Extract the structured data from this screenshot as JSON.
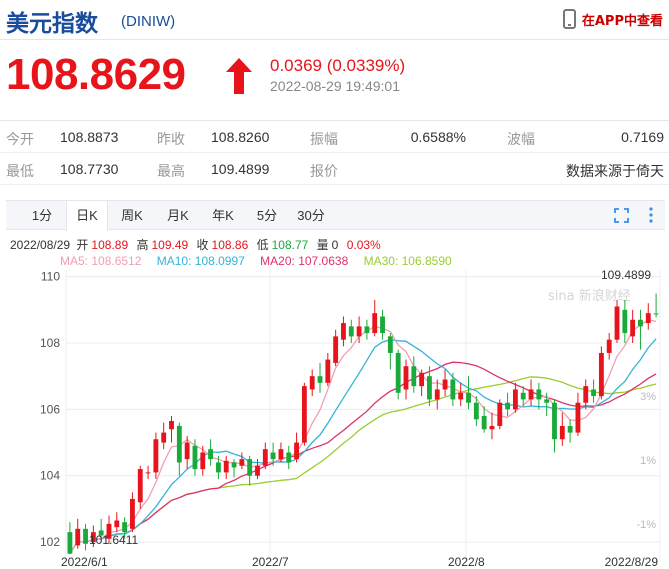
{
  "header": {
    "title": "美元指数",
    "code": "(DINIW)",
    "app_link": "在APP中查看"
  },
  "quote": {
    "price": "108.8629",
    "change": "0.0369 (0.0339%)",
    "time": "2022-08-29 19:49:01"
  },
  "stats": {
    "row1": [
      {
        "label": "今开",
        "value": "108.8873"
      },
      {
        "label": "昨收",
        "value": "108.8260"
      },
      {
        "label": "振幅",
        "value": "0.6588%"
      },
      {
        "label": "波幅",
        "value": "0.7169"
      }
    ],
    "row2": [
      {
        "label": "最低",
        "value": "108.7730"
      },
      {
        "label": "最高",
        "value": "109.4899"
      },
      {
        "label": "报价",
        "value": ""
      },
      {
        "label": "",
        "value": "数据来源于倚天"
      }
    ]
  },
  "tabs": [
    {
      "label": "1分",
      "active": false
    },
    {
      "label": "日K",
      "active": true
    },
    {
      "label": "周K",
      "active": false
    },
    {
      "label": "月K",
      "active": false
    },
    {
      "label": "年K",
      "active": false
    },
    {
      "label": "5分",
      "active": false
    },
    {
      "label": "30分",
      "active": false
    }
  ],
  "kline_info": {
    "date": "2022/08/29",
    "open_label": "开",
    "open": "108.89",
    "high_label": "高",
    "high": "109.49",
    "close_label": "收",
    "close": "108.86",
    "low_label": "低",
    "low": "108.77",
    "vol_label": "量",
    "vol": "0",
    "pct": "0.03%"
  },
  "ma": [
    {
      "label": "MA5: 108.6512",
      "color": "#f0a0b0"
    },
    {
      "label": "MA10: 108.0997",
      "color": "#35b4d6"
    },
    {
      "label": "MA20: 107.0638",
      "color": "#e0306c"
    },
    {
      "label": "MA30: 106.8590",
      "color": "#9acd32"
    }
  ],
  "colors": {
    "up": "#e8141b",
    "down": "#1aaa3a",
    "brand": "#1a4c9c",
    "grid": "#e8ecf2"
  },
  "icons": [
    "phone-icon",
    "up-arrow-icon",
    "fullscreen-icon",
    "more-vertical-icon"
  ],
  "chart_data": {
    "type": "candlestick",
    "y_ticks": [
      "110",
      "108",
      "106",
      "104",
      "102"
    ],
    "pct_ticks": [
      "3%",
      "1%",
      "-1%"
    ],
    "x_ticks": [
      "2022/6/1",
      "2022/7",
      "2022/8",
      "2022/8/29"
    ],
    "ylim": [
      101.4,
      110.2
    ],
    "max_label": "109.4899",
    "min_label": "101.6411",
    "watermark": "sina 新浪财经",
    "candles": [
      {
        "o": 102.3,
        "c": 101.65,
        "h": 102.6,
        "l": 101.64
      },
      {
        "o": 101.9,
        "c": 102.4,
        "h": 102.7,
        "l": 101.8
      },
      {
        "o": 102.4,
        "c": 101.95,
        "h": 102.55,
        "l": 101.75
      },
      {
        "o": 102.0,
        "c": 102.3,
        "h": 102.5,
        "l": 101.85
      },
      {
        "o": 102.35,
        "c": 102.2,
        "h": 102.7,
        "l": 102.05
      },
      {
        "o": 102.1,
        "c": 102.55,
        "h": 102.8,
        "l": 101.95
      },
      {
        "o": 102.45,
        "c": 102.65,
        "h": 102.9,
        "l": 102.3
      },
      {
        "o": 102.6,
        "c": 102.3,
        "h": 102.75,
        "l": 102.1
      },
      {
        "o": 102.4,
        "c": 103.3,
        "h": 103.5,
        "l": 102.3
      },
      {
        "o": 103.2,
        "c": 104.2,
        "h": 104.3,
        "l": 103.0
      },
      {
        "o": 104.1,
        "c": 104.1,
        "h": 104.3,
        "l": 103.9
      },
      {
        "o": 104.1,
        "c": 105.1,
        "h": 105.3,
        "l": 103.9
      },
      {
        "o": 105.0,
        "c": 105.3,
        "h": 105.6,
        "l": 104.8
      },
      {
        "o": 105.4,
        "c": 105.65,
        "h": 105.8,
        "l": 105.0
      },
      {
        "o": 105.5,
        "c": 104.4,
        "h": 105.6,
        "l": 104.0
      },
      {
        "o": 104.5,
        "c": 105.0,
        "h": 105.2,
        "l": 104.2
      },
      {
        "o": 104.9,
        "c": 104.2,
        "h": 105.1,
        "l": 104.0
      },
      {
        "o": 104.2,
        "c": 104.7,
        "h": 104.9,
        "l": 104.0
      },
      {
        "o": 104.8,
        "c": 104.5,
        "h": 105.1,
        "l": 104.3
      },
      {
        "o": 104.4,
        "c": 104.1,
        "h": 104.6,
        "l": 103.9
      },
      {
        "o": 104.1,
        "c": 104.45,
        "h": 104.6,
        "l": 103.9
      },
      {
        "o": 104.4,
        "c": 104.25,
        "h": 104.5,
        "l": 103.95
      },
      {
        "o": 104.3,
        "c": 104.5,
        "h": 104.7,
        "l": 104.2
      },
      {
        "o": 104.5,
        "c": 104.0,
        "h": 104.6,
        "l": 103.7
      },
      {
        "o": 104.0,
        "c": 104.3,
        "h": 104.5,
        "l": 103.9
      },
      {
        "o": 104.3,
        "c": 104.8,
        "h": 105.0,
        "l": 104.2
      },
      {
        "o": 104.7,
        "c": 104.5,
        "h": 105.0,
        "l": 104.3
      },
      {
        "o": 104.5,
        "c": 104.8,
        "h": 105.0,
        "l": 104.4
      },
      {
        "o": 104.7,
        "c": 104.4,
        "h": 104.9,
        "l": 104.2
      },
      {
        "o": 104.5,
        "c": 105.0,
        "h": 105.3,
        "l": 104.4
      },
      {
        "o": 105.0,
        "c": 106.7,
        "h": 106.8,
        "l": 104.9
      },
      {
        "o": 106.6,
        "c": 107.0,
        "h": 107.2,
        "l": 106.4
      },
      {
        "o": 107.0,
        "c": 106.8,
        "h": 107.4,
        "l": 106.5
      },
      {
        "o": 106.8,
        "c": 107.5,
        "h": 107.7,
        "l": 106.7
      },
      {
        "o": 107.4,
        "c": 108.2,
        "h": 108.4,
        "l": 107.3
      },
      {
        "o": 108.1,
        "c": 108.6,
        "h": 108.8,
        "l": 107.9
      },
      {
        "o": 108.5,
        "c": 108.2,
        "h": 108.7,
        "l": 108.0
      },
      {
        "o": 108.2,
        "c": 108.5,
        "h": 108.8,
        "l": 108.0
      },
      {
        "o": 108.5,
        "c": 108.3,
        "h": 108.7,
        "l": 108.1
      },
      {
        "o": 108.3,
        "c": 108.9,
        "h": 109.3,
        "l": 108.2
      },
      {
        "o": 108.8,
        "c": 108.3,
        "h": 109.0,
        "l": 108.1
      },
      {
        "o": 108.2,
        "c": 107.7,
        "h": 108.3,
        "l": 107.2
      },
      {
        "o": 107.7,
        "c": 106.5,
        "h": 107.8,
        "l": 106.3
      },
      {
        "o": 106.6,
        "c": 107.3,
        "h": 107.5,
        "l": 106.3
      },
      {
        "o": 107.3,
        "c": 106.7,
        "h": 107.6,
        "l": 106.5
      },
      {
        "o": 106.7,
        "c": 107.1,
        "h": 107.2,
        "l": 106.4
      },
      {
        "o": 107.0,
        "c": 106.3,
        "h": 107.3,
        "l": 106.1
      },
      {
        "o": 106.3,
        "c": 106.6,
        "h": 106.9,
        "l": 106.0
      },
      {
        "o": 106.6,
        "c": 106.9,
        "h": 107.2,
        "l": 106.4
      },
      {
        "o": 106.9,
        "c": 106.3,
        "h": 107.1,
        "l": 106.1
      },
      {
        "o": 106.3,
        "c": 106.5,
        "h": 106.8,
        "l": 106.1
      },
      {
        "o": 106.5,
        "c": 106.2,
        "h": 107.0,
        "l": 106.0
      },
      {
        "o": 106.2,
        "c": 105.7,
        "h": 106.4,
        "l": 105.5
      },
      {
        "o": 105.8,
        "c": 105.4,
        "h": 106.1,
        "l": 105.3
      },
      {
        "o": 105.4,
        "c": 105.5,
        "h": 105.9,
        "l": 105.1
      },
      {
        "o": 105.5,
        "c": 106.2,
        "h": 106.3,
        "l": 105.4
      },
      {
        "o": 106.2,
        "c": 106.0,
        "h": 106.5,
        "l": 105.8
      },
      {
        "o": 106.0,
        "c": 106.6,
        "h": 106.8,
        "l": 105.9
      },
      {
        "o": 106.5,
        "c": 106.3,
        "h": 106.7,
        "l": 106.1
      },
      {
        "o": 106.3,
        "c": 106.6,
        "h": 106.9,
        "l": 106.1
      },
      {
        "o": 106.6,
        "c": 106.3,
        "h": 106.8,
        "l": 106.0
      },
      {
        "o": 106.3,
        "c": 106.2,
        "h": 106.5,
        "l": 105.8
      },
      {
        "o": 106.2,
        "c": 105.1,
        "h": 106.3,
        "l": 104.7
      },
      {
        "o": 105.1,
        "c": 105.5,
        "h": 105.9,
        "l": 104.9
      },
      {
        "o": 105.5,
        "c": 105.3,
        "h": 105.7,
        "l": 105.0
      },
      {
        "o": 105.3,
        "c": 106.2,
        "h": 106.5,
        "l": 105.2
      },
      {
        "o": 106.2,
        "c": 106.7,
        "h": 106.9,
        "l": 106.0
      },
      {
        "o": 106.6,
        "c": 106.4,
        "h": 106.9,
        "l": 106.2
      },
      {
        "o": 106.4,
        "c": 107.7,
        "h": 107.9,
        "l": 106.3
      },
      {
        "o": 107.7,
        "c": 108.1,
        "h": 108.3,
        "l": 107.5
      },
      {
        "o": 108.1,
        "c": 109.1,
        "h": 109.3,
        "l": 108.0
      },
      {
        "o": 109.0,
        "c": 108.3,
        "h": 109.3,
        "l": 108.0
      },
      {
        "o": 108.2,
        "c": 108.7,
        "h": 109.0,
        "l": 108.0
      },
      {
        "o": 108.7,
        "c": 108.5,
        "h": 109.0,
        "l": 107.8
      },
      {
        "o": 108.6,
        "c": 108.9,
        "h": 109.2,
        "l": 108.4
      },
      {
        "o": 108.89,
        "c": 108.86,
        "h": 109.49,
        "l": 108.77
      }
    ]
  }
}
